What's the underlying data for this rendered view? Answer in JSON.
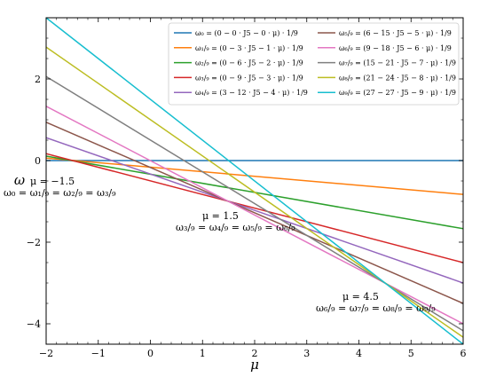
{
  "chart_data": {
    "type": "line",
    "xlabel": "μ",
    "ylabel": "ω",
    "xlim": [
      -2,
      6
    ],
    "ylim": [
      -4.5,
      3.5
    ],
    "xticks": [
      -2,
      -1,
      0,
      1,
      2,
      3,
      4,
      5,
      6
    ],
    "yticks": [
      -4,
      -2,
      0,
      2
    ],
    "xtick_labels": [
      "−2",
      "−1",
      "0",
      "1",
      "2",
      "3",
      "4",
      "5",
      "6"
    ],
    "ytick_labels": [
      "−4",
      "−2",
      "0",
      "2"
    ],
    "legend_location": "top-right",
    "series": [
      {
        "name": "ω₀ = (0 − 0 · J5 − 0 · μ) · 1/9",
        "color": "#1f77b4",
        "intercept": 0,
        "slope": 0,
        "x": [
          -2,
          6
        ],
        "y": [
          0,
          0
        ]
      },
      {
        "name": "ω₁/₉ = (0 − 3 · J5 − 1 · μ) · 1/9",
        "color": "#ff7f0e",
        "intercept": -0.1667,
        "slope": -0.1111,
        "x": [
          -2,
          6
        ],
        "y": [
          0.06,
          -0.83
        ]
      },
      {
        "name": "ω₂/₉ = (0 − 6 · J5 − 2 · μ) · 1/9",
        "color": "#2ca02c",
        "intercept": -0.3333,
        "slope": -0.2222,
        "x": [
          -2,
          6
        ],
        "y": [
          0.11,
          -1.67
        ]
      },
      {
        "name": "ω₃/₉ = (0 − 9 · J5 − 3 · μ) · 1/9",
        "color": "#d62728",
        "intercept": -0.5,
        "slope": -0.3333,
        "x": [
          -2,
          6
        ],
        "y": [
          0.17,
          -2.5
        ]
      },
      {
        "name": "ω₄/₉ = (3 − 12 · J5 − 4 · μ) · 1/9",
        "color": "#9467bd",
        "intercept": -0.3333,
        "slope": -0.4444,
        "x": [
          -2,
          6
        ],
        "y": [
          0.56,
          -3.0
        ]
      },
      {
        "name": "ω₅/₉ = (6 − 15 · J5 − 5 · μ) · 1/9",
        "color": "#8c564b",
        "intercept": -0.1667,
        "slope": -0.5556,
        "x": [
          -2,
          6
        ],
        "y": [
          0.94,
          -3.5
        ]
      },
      {
        "name": "ω₆/₉ = (9 − 18 · J5 − 6 · μ) · 1/9",
        "color": "#e377c2",
        "intercept": 0,
        "slope": -0.6667,
        "x": [
          -2,
          6
        ],
        "y": [
          1.33,
          -4.0
        ]
      },
      {
        "name": "ω₇/₉ = (15 − 21 · J5 − 7 · μ) · 1/9",
        "color": "#7f7f7f",
        "intercept": 0.5,
        "slope": -0.7778,
        "x": [
          -2,
          6
        ],
        "y": [
          2.06,
          -4.17
        ]
      },
      {
        "name": "ω₈/₉ = (21 − 24 · J5 − 8 · μ) · 1/9",
        "color": "#bcbd22",
        "intercept": 1.0,
        "slope": -0.8889,
        "x": [
          -2,
          6
        ],
        "y": [
          2.78,
          -4.33
        ]
      },
      {
        "name": "ω₉/₉ = (27 − 27 · J5 − 9 · μ) · 1/9",
        "color": "#17becf",
        "intercept": 1.5,
        "slope": -1.0,
        "x": [
          -2,
          6
        ],
        "y": [
          3.5,
          -4.5
        ]
      }
    ],
    "annotations": [
      {
        "lines": [
          "μ = −1.5",
          "ω₀ = ω₁/₉ = ω₂/₉ = ω₃/₉"
        ],
        "at_x": -1.5,
        "at_y": 0
      },
      {
        "lines": [
          "μ = 1.5",
          "ω₃/₉ = ω₄/₉ = ω₅/₉ = ω₆/₉"
        ],
        "at_x": 1.5,
        "at_y": -1.0
      },
      {
        "lines": [
          "μ = 4.5",
          "ω₆/₉ = ω₇/₉ = ω₈/₉ = ω₉/₉"
        ],
        "at_x": 4.5,
        "at_y": -3.0
      }
    ]
  }
}
